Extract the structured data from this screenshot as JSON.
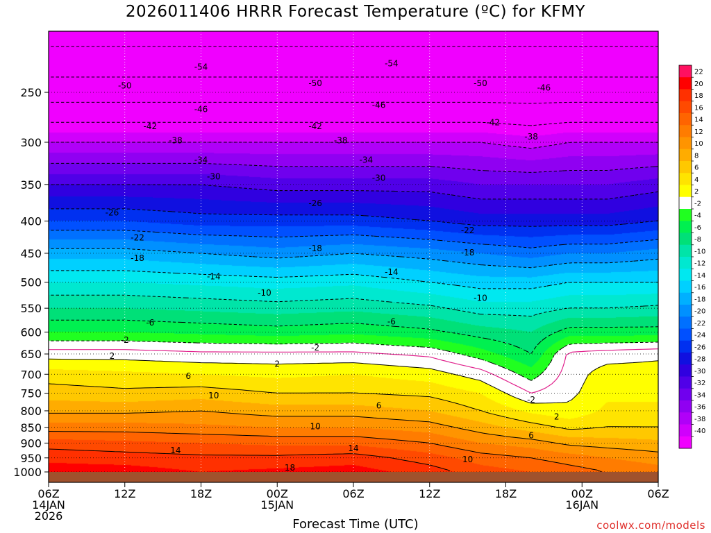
{
  "title": "2026011406 HRRR Forecast Temperature (ºC) for KFMY",
  "xlabel": "Forecast Time (UTC)",
  "credit": "coolwx.com/models",
  "colors": {
    "background": "#ffffff",
    "ground": "#a0522d",
    "freezing_line": "#e0208c",
    "contour": "#000000",
    "credit": "#e0302c"
  },
  "chart_data": {
    "type": "heatmap",
    "title": "2026011406 HRRR Forecast Temperature (ºC) for KFMY",
    "xlabel": "Forecast Time (UTC)",
    "ylabel": "",
    "xlim": [
      0,
      48
    ],
    "ylim": [
      1000,
      200
    ],
    "y_scale": "log-pressure",
    "x_ticks": [
      {
        "hour": 0,
        "line1": "06Z",
        "line2": "14JAN",
        "line3": "2026"
      },
      {
        "hour": 6,
        "line1": "12Z",
        "line2": "",
        "line3": ""
      },
      {
        "hour": 12,
        "line1": "18Z",
        "line2": "",
        "line3": ""
      },
      {
        "hour": 18,
        "line1": "00Z",
        "line2": "15JAN",
        "line3": ""
      },
      {
        "hour": 24,
        "line1": "06Z",
        "line2": "",
        "line3": ""
      },
      {
        "hour": 30,
        "line1": "12Z",
        "line2": "",
        "line3": ""
      },
      {
        "hour": 36,
        "line1": "18Z",
        "line2": "",
        "line3": ""
      },
      {
        "hour": 42,
        "line1": "00Z",
        "line2": "16JAN",
        "line3": ""
      },
      {
        "hour": 48,
        "line1": "06Z",
        "line2": "",
        "line3": ""
      }
    ],
    "y_ticks": [
      "250",
      "300",
      "350",
      "400",
      "450",
      "500",
      "550",
      "600",
      "650",
      "700",
      "750",
      "800",
      "850",
      "900",
      "950",
      "1000"
    ],
    "colorbar": {
      "labels": [
        "22",
        "20",
        "18",
        "16",
        "14",
        "12",
        "10",
        "8",
        "6",
        "4",
        "2",
        "-2",
        "-4",
        "-6",
        "-8",
        "-10",
        "-12",
        "-14",
        "-16",
        "-18",
        "-20",
        "-22",
        "-24",
        "-26",
        "-28",
        "-30",
        "-32",
        "-34",
        "-36",
        "-38",
        "-40"
      ],
      "colors": [
        "#ff1060",
        "#ff0000",
        "#ff3000",
        "#ff4a00",
        "#ff6400",
        "#ff7c00",
        "#ff9400",
        "#ffac00",
        "#ffc800",
        "#ffe400",
        "#ffff00",
        "#ffffff",
        "#20ff20",
        "#00f050",
        "#00e078",
        "#00e4a8",
        "#00e8d0",
        "#00e8f0",
        "#00d0ff",
        "#00b0ff",
        "#0090ff",
        "#0070ff",
        "#0050ff",
        "#0030f0",
        "#1010e0",
        "#3000e0",
        "#5000e8",
        "#7000ee",
        "#9000f2",
        "#b000f8",
        "#d000fc",
        "#f000ff"
      ]
    },
    "profile_pressures": [
      1000,
      950,
      900,
      850,
      800,
      750,
      700,
      650,
      600,
      550,
      500,
      450,
      400,
      350,
      300,
      250,
      200
    ],
    "profiles": [
      {
        "hour": 0,
        "temps": [
          21,
          19.5,
          17,
          13,
          9.5,
          7,
          5,
          1,
          -4,
          -8,
          -12,
          -17,
          -24,
          -30,
          -38,
          -48,
          -56
        ]
      },
      {
        "hour": 6,
        "temps": [
          21,
          19,
          16.5,
          13,
          9.5,
          6.5,
          4.5,
          1,
          -4,
          -8,
          -12,
          -17,
          -24,
          -30,
          -38,
          -48,
          -56
        ]
      },
      {
        "hour": 12,
        "temps": [
          20,
          18.5,
          16,
          12.5,
          10,
          7,
          4,
          0.5,
          -4.5,
          -8.5,
          -12.5,
          -18,
          -25,
          -30,
          -38,
          -48,
          -56
        ]
      },
      {
        "hour": 18,
        "temps": [
          20.5,
          18.5,
          15.5,
          12,
          9,
          6,
          3.5,
          0.5,
          -5,
          -9,
          -13,
          -19,
          -25,
          -31,
          -38,
          -48,
          -56
        ]
      },
      {
        "hour": 24,
        "temps": [
          21,
          19,
          15.5,
          12,
          9,
          6,
          4,
          0.5,
          -4.5,
          -8.5,
          -12.5,
          -18,
          -25,
          -31,
          -38,
          -48,
          -56
        ]
      },
      {
        "hour": 30,
        "temps": [
          19,
          17,
          14,
          11,
          8,
          5.5,
          3,
          -0.5,
          -5.5,
          -9.5,
          -14,
          -19,
          -26,
          -31,
          -38,
          -48,
          -56
        ]
      },
      {
        "hour": 34,
        "temps": [
          17,
          15,
          12,
          9,
          6,
          4,
          1,
          -3,
          -7,
          -11,
          -15,
          -20,
          -27,
          -32,
          -38,
          -48,
          -56
        ]
      },
      {
        "hour": 38,
        "temps": [
          16,
          14,
          11,
          7,
          3.5,
          0,
          -3,
          -6,
          -8,
          -11,
          -15,
          -21,
          -27,
          -32,
          -39,
          -48,
          -56
        ]
      },
      {
        "hour": 41,
        "temps": [
          15,
          13,
          9.5,
          5.5,
          2.5,
          1.5,
          1,
          0.5,
          -5,
          -10,
          -14,
          -20,
          -27,
          -32,
          -38,
          -48,
          -56
        ]
      },
      {
        "hour": 44,
        "temps": [
          14,
          12,
          9,
          6,
          4.5,
          3.5,
          3,
          1,
          -5,
          -10,
          -14,
          -20,
          -27,
          -32,
          -38,
          -48,
          -56
        ]
      },
      {
        "hour": 48,
        "temps": [
          13,
          11,
          8.5,
          6,
          4.5,
          3.5,
          3,
          1.5,
          -5,
          -9.5,
          -14,
          -19,
          -26,
          -31,
          -38,
          -48,
          -56
        ]
      }
    ],
    "contour_labels": [
      {
        "label": "-54",
        "hour": 12,
        "p": 228
      },
      {
        "label": "-54",
        "hour": 27,
        "p": 225
      },
      {
        "label": "-50",
        "hour": 6,
        "p": 244
      },
      {
        "label": "-50",
        "hour": 21,
        "p": 242
      },
      {
        "label": "-50",
        "hour": 34,
        "p": 242
      },
      {
        "label": "-46",
        "hour": 39,
        "p": 246
      },
      {
        "label": "-46",
        "hour": 12,
        "p": 266
      },
      {
        "label": "-46",
        "hour": 26,
        "p": 262
      },
      {
        "label": "-42",
        "hour": 8,
        "p": 283
      },
      {
        "label": "-42",
        "hour": 21,
        "p": 283
      },
      {
        "label": "-42",
        "hour": 35,
        "p": 279
      },
      {
        "label": "-38",
        "hour": 10,
        "p": 298
      },
      {
        "label": "-38",
        "hour": 23,
        "p": 298
      },
      {
        "label": "-38",
        "hour": 38,
        "p": 294
      },
      {
        "label": "-34",
        "hour": 12,
        "p": 320
      },
      {
        "label": "-34",
        "hour": 25,
        "p": 320
      },
      {
        "label": "-30",
        "hour": 13,
        "p": 340
      },
      {
        "label": "-30",
        "hour": 26,
        "p": 342
      },
      {
        "label": "-26",
        "hour": 5,
        "p": 388
      },
      {
        "label": "-26",
        "hour": 21,
        "p": 375
      },
      {
        "label": "-22",
        "hour": 7,
        "p": 425
      },
      {
        "label": "-22",
        "hour": 33,
        "p": 414
      },
      {
        "label": "-18",
        "hour": 7,
        "p": 458
      },
      {
        "label": "-18",
        "hour": 21,
        "p": 442
      },
      {
        "label": "-18",
        "hour": 33,
        "p": 449
      },
      {
        "label": "-14",
        "hour": 13,
        "p": 490
      },
      {
        "label": "-14",
        "hour": 27,
        "p": 482
      },
      {
        "label": "-10",
        "hour": 17,
        "p": 520
      },
      {
        "label": "-10",
        "hour": 34,
        "p": 530
      },
      {
        "label": "-6",
        "hour": 8,
        "p": 580
      },
      {
        "label": "-6",
        "hour": 27,
        "p": 578
      },
      {
        "label": "-2",
        "hour": 6,
        "p": 618
      },
      {
        "label": "-2",
        "hour": 21,
        "p": 635
      },
      {
        "label": "2",
        "hour": 5,
        "p": 655
      },
      {
        "label": "2",
        "hour": 18,
        "p": 674
      },
      {
        "label": "-2",
        "hour": 38,
        "p": 768
      },
      {
        "label": "2",
        "hour": 40,
        "p": 818
      },
      {
        "label": "6",
        "hour": 11,
        "p": 705
      },
      {
        "label": "6",
        "hour": 26,
        "p": 785
      },
      {
        "label": "6",
        "hour": 38,
        "p": 875
      },
      {
        "label": "10",
        "hour": 13,
        "p": 757
      },
      {
        "label": "10",
        "hour": 21,
        "p": 847
      },
      {
        "label": "10",
        "hour": 33,
        "p": 955
      },
      {
        "label": "14",
        "hour": 10,
        "p": 925
      },
      {
        "label": "14",
        "hour": 24,
        "p": 918
      },
      {
        "label": "18",
        "hour": 19,
        "p": 985
      }
    ]
  }
}
